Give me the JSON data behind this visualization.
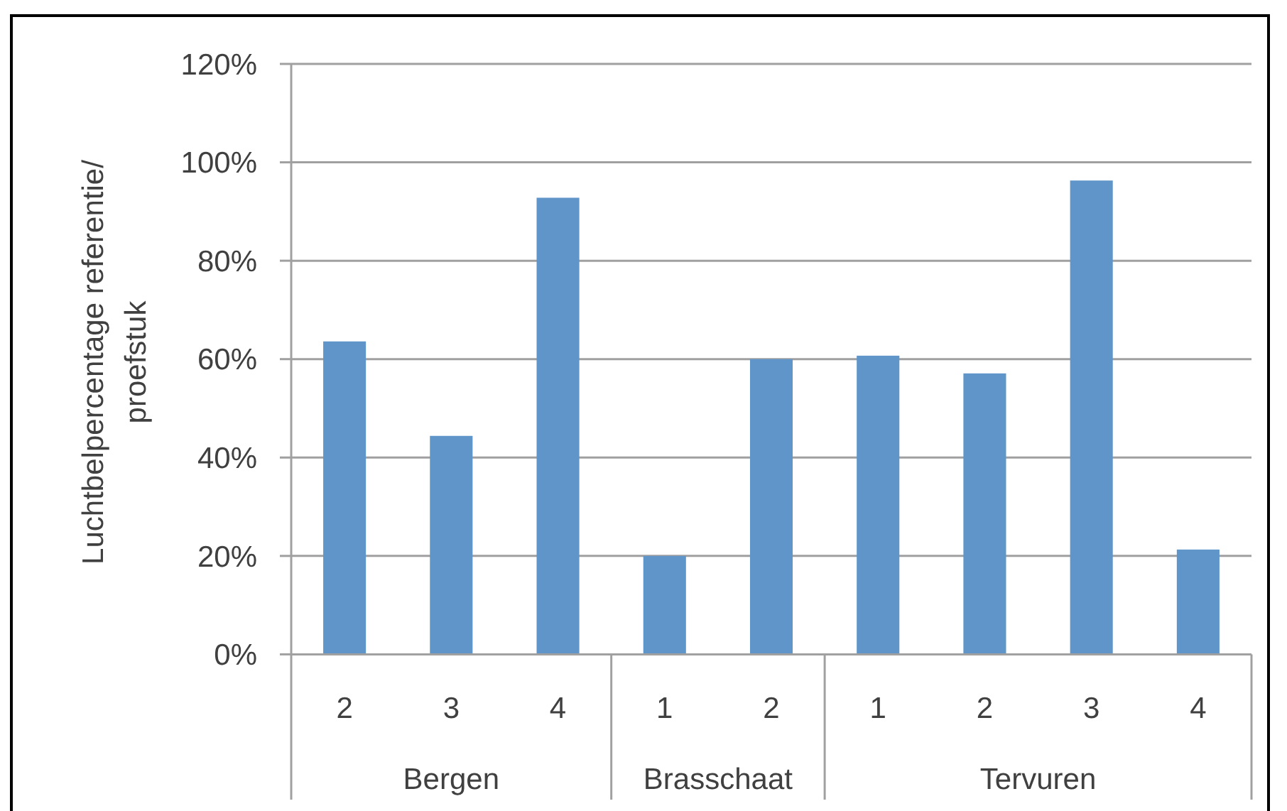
{
  "chart_data": {
    "type": "bar",
    "ylabel": "Luchtbelpercentage referentie/ proefstuk",
    "categories": [
      "2",
      "3",
      "4",
      "1",
      "2",
      "1",
      "2",
      "3",
      "4"
    ],
    "values": [
      63.6,
      44.4,
      92.8,
      20.0,
      60.0,
      60.7,
      57.1,
      96.3,
      21.3
    ],
    "color": "#5f95c9",
    "ylim": [
      0,
      120
    ],
    "yticks": [
      {
        "value": 0,
        "label": "0%"
      },
      {
        "value": 20,
        "label": "20%"
      },
      {
        "value": 40,
        "label": "40%"
      },
      {
        "value": 60,
        "label": "60%"
      },
      {
        "value": 80,
        "label": "80%"
      },
      {
        "value": 100,
        "label": "100%"
      },
      {
        "value": 120,
        "label": "120%"
      }
    ],
    "grid": "y",
    "annotations": [
      "Bergen",
      "Brasschaat",
      "Tervuren"
    ]
  }
}
